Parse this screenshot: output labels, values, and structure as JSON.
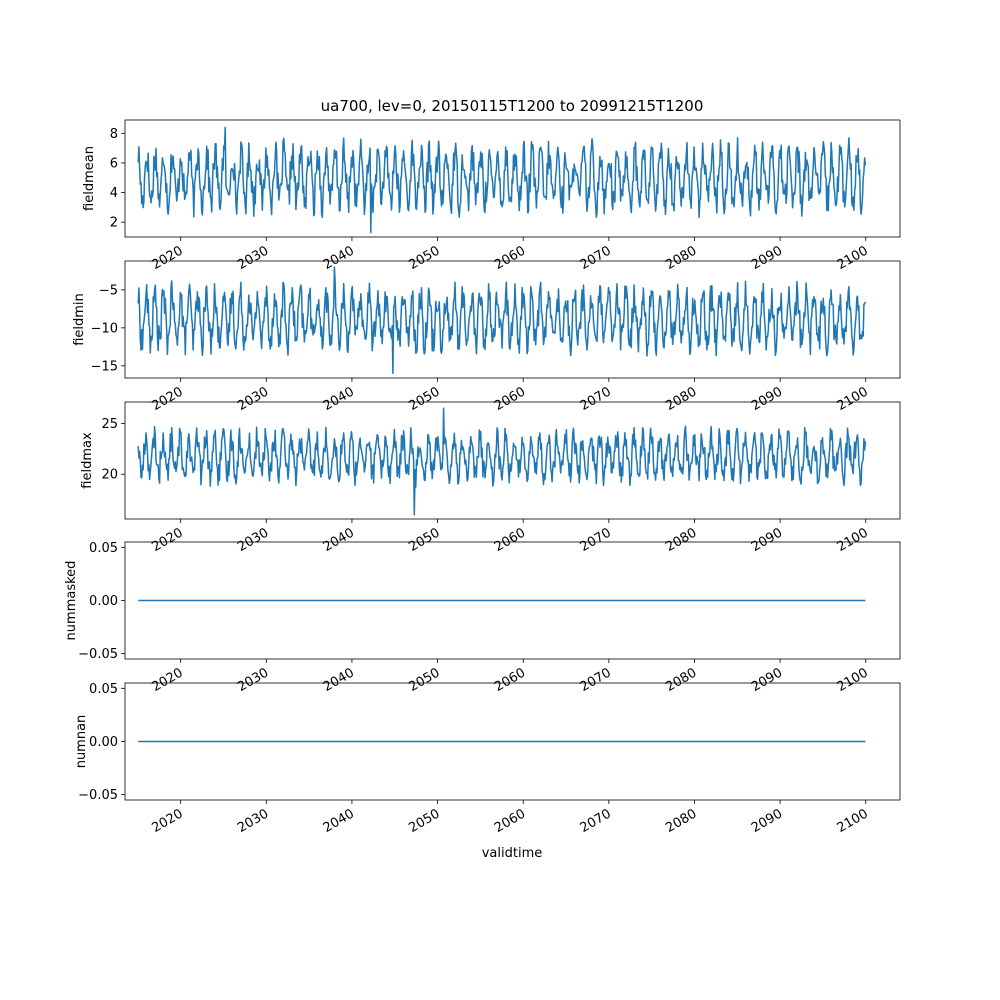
{
  "figure": {
    "title": "ua700, lev=0, 20150115T1200 to 20991215T1200",
    "xlabel": "validtime",
    "line_color": "#1f77b4"
  },
  "chart_data": [
    {
      "type": "line",
      "ylabel": "fieldmean",
      "x_range": [
        "2015-01-15",
        "2099-12-15"
      ],
      "xlim": [
        2013.5,
        2104.0
      ],
      "ylim": [
        1.0,
        8.9
      ],
      "yticks": [
        2,
        4,
        6,
        8
      ],
      "ytick_labels": [
        "2",
        "4",
        "6",
        "8"
      ],
      "xticks": [
        2020,
        2030,
        2040,
        2050,
        2060,
        2070,
        2080,
        2090,
        2100
      ],
      "xtick_labels": [
        "2020",
        "2030",
        "2040",
        "2050",
        "2060",
        "2070",
        "2080",
        "2090",
        "2100"
      ],
      "summary": {
        "typical_low": 3.0,
        "typical_high": 7.0,
        "min": 1.3,
        "max": 8.4
      },
      "grid": false
    },
    {
      "type": "line",
      "ylabel": "fieldmin",
      "x_range": [
        "2015-01-15",
        "2099-12-15"
      ],
      "xlim": [
        2013.5,
        2104.0
      ],
      "ylim": [
        -16.6,
        -1.2
      ],
      "yticks": [
        -15,
        -10,
        -5
      ],
      "ytick_labels": [
        "−15",
        "−10",
        "−5"
      ],
      "xticks": [
        2020,
        2030,
        2040,
        2050,
        2060,
        2070,
        2080,
        2090,
        2100
      ],
      "xtick_labels": [
        "2020",
        "2030",
        "2040",
        "2050",
        "2060",
        "2070",
        "2080",
        "2090",
        "2100"
      ],
      "summary": {
        "typical_low": -12.5,
        "typical_high": -5.0,
        "min": -16.0,
        "max": -2.0
      },
      "grid": false
    },
    {
      "type": "line",
      "ylabel": "fieldmax",
      "x_range": [
        "2015-01-15",
        "2099-12-15"
      ],
      "xlim": [
        2013.5,
        2104.0
      ],
      "ylim": [
        15.6,
        27.1
      ],
      "yticks": [
        20,
        25
      ],
      "ytick_labels": [
        "20",
        "25"
      ],
      "xticks": [
        2020,
        2030,
        2040,
        2050,
        2060,
        2070,
        2080,
        2090,
        2100
      ],
      "xtick_labels": [
        "2020",
        "2030",
        "2040",
        "2050",
        "2060",
        "2070",
        "2080",
        "2090",
        "2100"
      ],
      "summary": {
        "typical_low": 19.5,
        "typical_high": 24.0,
        "min": 16.0,
        "max": 26.5
      },
      "grid": false
    },
    {
      "type": "line",
      "ylabel": "nummasked",
      "x_range": [
        "2015-01-15",
        "2099-12-15"
      ],
      "xlim": [
        2013.5,
        2104.0
      ],
      "ylim": [
        -0.055,
        0.055
      ],
      "yticks": [
        -0.05,
        0.0,
        0.05
      ],
      "ytick_labels": [
        "−0.05",
        "0.00",
        "0.05"
      ],
      "xticks": [
        2020,
        2030,
        2040,
        2050,
        2060,
        2070,
        2080,
        2090,
        2100
      ],
      "xtick_labels": [
        "2020",
        "2030",
        "2040",
        "2050",
        "2060",
        "2070",
        "2080",
        "2090",
        "2100"
      ],
      "constant_value": 0.0,
      "grid": false
    },
    {
      "type": "line",
      "ylabel": "numnan",
      "x_range": [
        "2015-01-15",
        "2099-12-15"
      ],
      "xlim": [
        2013.5,
        2104.0
      ],
      "ylim": [
        -0.055,
        0.055
      ],
      "yticks": [
        -0.05,
        0.0,
        0.05
      ],
      "ytick_labels": [
        "−0.05",
        "0.00",
        "0.05"
      ],
      "xticks": [
        2020,
        2030,
        2040,
        2050,
        2060,
        2070,
        2080,
        2090,
        2100
      ],
      "xtick_labels": [
        "2020",
        "2030",
        "2040",
        "2050",
        "2060",
        "2070",
        "2080",
        "2090",
        "2100"
      ],
      "constant_value": 0.0,
      "grid": false
    }
  ]
}
